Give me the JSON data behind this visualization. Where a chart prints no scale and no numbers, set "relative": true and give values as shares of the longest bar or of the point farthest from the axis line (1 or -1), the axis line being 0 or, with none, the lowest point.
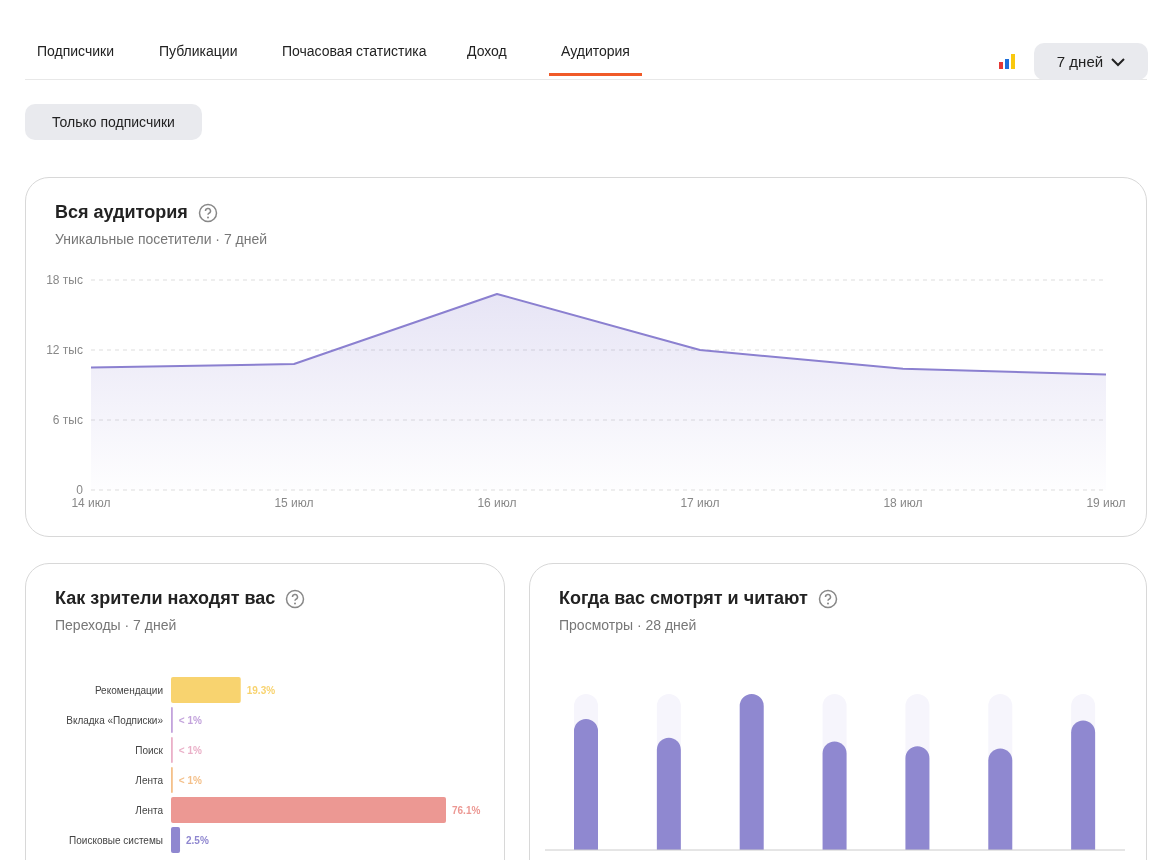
{
  "chart_data": [
    {
      "type": "other",
      "annotations": [
        "Подписчики",
        "Публикации",
        "Почасовая статистика",
        "Доход",
        "Аудитория",
        "7 дней",
        "Только подписчики"
      ]
    },
    {
      "type": "area",
      "title": "Вся аудитория",
      "subtitle": "Уникальные посетители · 7 дней",
      "categories": [
        "14 июл",
        "15 июл",
        "16 июл",
        "17 июл",
        "18 июл",
        "19 июл"
      ],
      "series": [
        {
          "color": "#8b80d0",
          "values": [
            10.5,
            10.8,
            16.8,
            12.0,
            10.4,
            9.9
          ]
        }
      ],
      "ylim": [
        0,
        18
      ],
      "yticks": [
        0,
        {
          "value": 6,
          "label": "6 тыс"
        },
        {
          "value": 12,
          "label": "12 тыс"
        },
        {
          "value": 18,
          "label": "18 тыс"
        }
      ],
      "grid": "y",
      "line_style": "solid"
    },
    {
      "type": "bar",
      "orientation": "horizontal",
      "title": "Как зрители находят вас",
      "subtitle": "Переходы · 7 дней",
      "categories": [
        "Рекомендации",
        "Вкладка «Подписки»",
        "Поиск",
        "Лента",
        "Лента",
        "Поисковые системы"
      ],
      "values": [
        19.3,
        0.5,
        0.5,
        0.5,
        76.1,
        2.5
      ],
      "value_labels": [
        "19.3%",
        "< 1%",
        "< 1%",
        "< 1%",
        "76.1%",
        "2.5%"
      ],
      "colors": [
        "#f8d36f",
        "#c3a3dc",
        "#eab0c8",
        "#f4c08a",
        "#ec9893",
        "#8f87d0"
      ],
      "tick_labels": "y"
    },
    {
      "type": "bar",
      "title": "Когда вас смотрят и читают",
      "subtitle": "Просмотры · 28 дней",
      "categories": [
        null,
        null,
        null,
        null,
        null,
        null,
        null
      ],
      "values": [
        0.84,
        0.72,
        1,
        0.695,
        0.665,
        0.65,
        0.83
      ],
      "color": "#8f88d0",
      "relative": true,
      "tick_labels": false
    }
  ]
}
